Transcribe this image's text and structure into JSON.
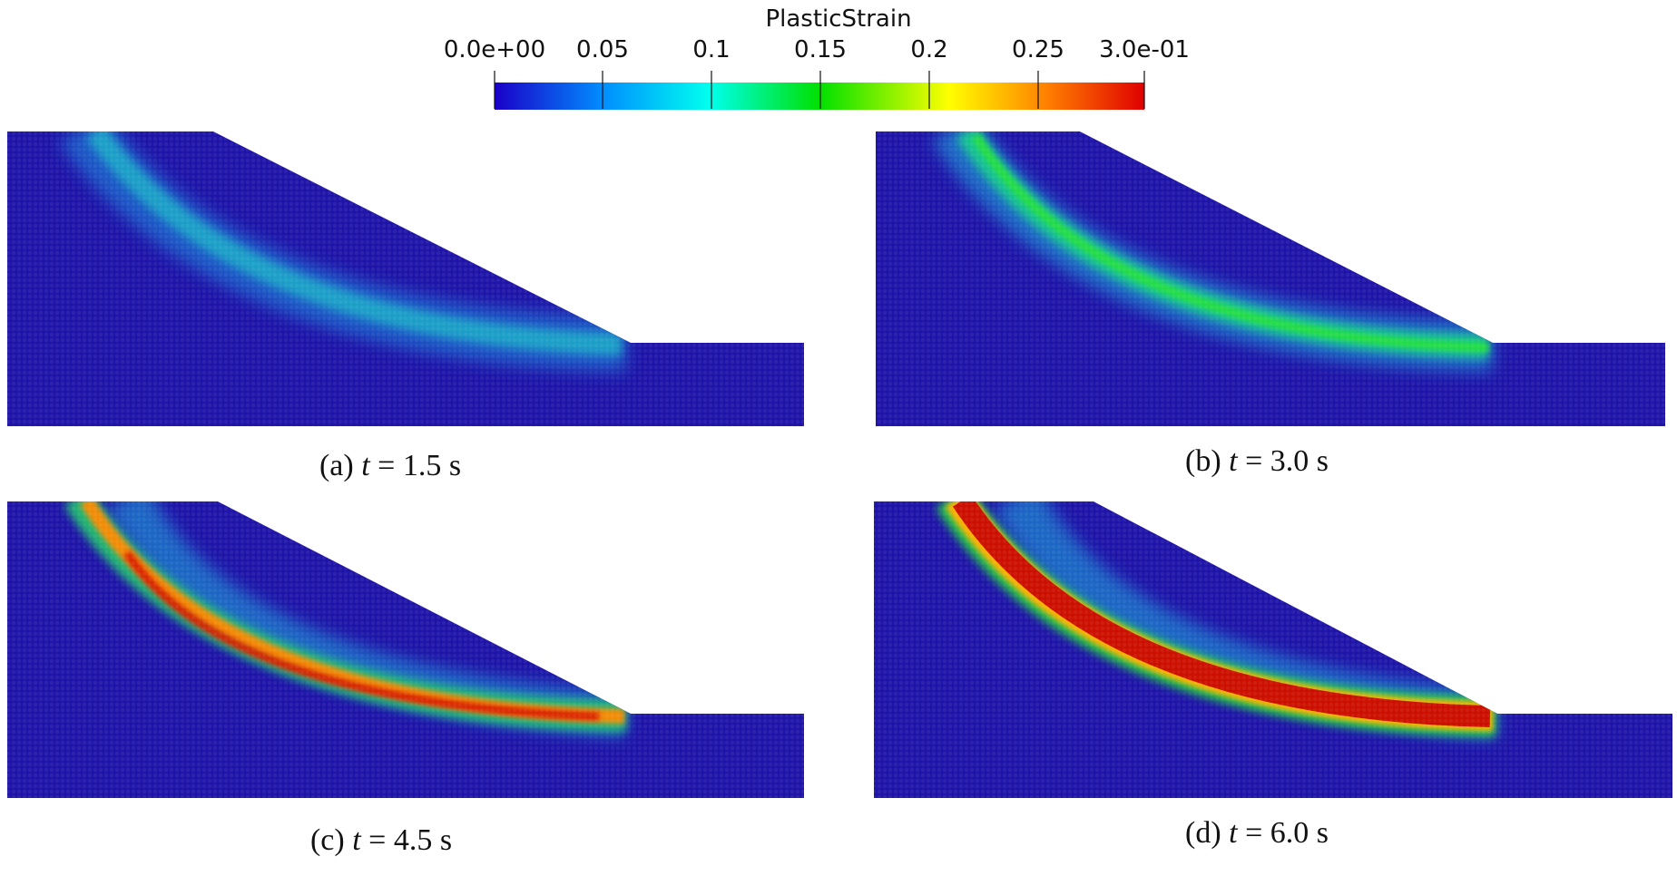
{
  "colorbar": {
    "title": "PlasticStrain",
    "tick_labels": [
      "0.0e+00",
      "0.05",
      "0.1",
      "0.15",
      "0.2",
      "0.25",
      "3.0e-01"
    ],
    "tick_values": [
      0,
      0.05,
      0.1,
      0.15,
      0.2,
      0.25,
      0.3
    ],
    "range": [
      0,
      0.3
    ],
    "colors": [
      "#1a00c8",
      "#0090ff",
      "#00ffee",
      "#00e000",
      "#ffff00",
      "#ff8000",
      "#e00000"
    ]
  },
  "panels": [
    {
      "prefix": "(a) ",
      "t": "t",
      "suffix": " = 1.5 s",
      "peak_strain": 0.08
    },
    {
      "prefix": "(b) ",
      "t": "t",
      "suffix": " = 3.0 s",
      "peak_strain": 0.15
    },
    {
      "prefix": "(c) ",
      "t": "t",
      "suffix": " = 4.5 s",
      "peak_strain": 0.3
    },
    {
      "prefix": "(d) ",
      "t": "t",
      "suffix": " = 6.0 s",
      "peak_strain": 0.3
    }
  ],
  "background_color": "#1f14a8"
}
